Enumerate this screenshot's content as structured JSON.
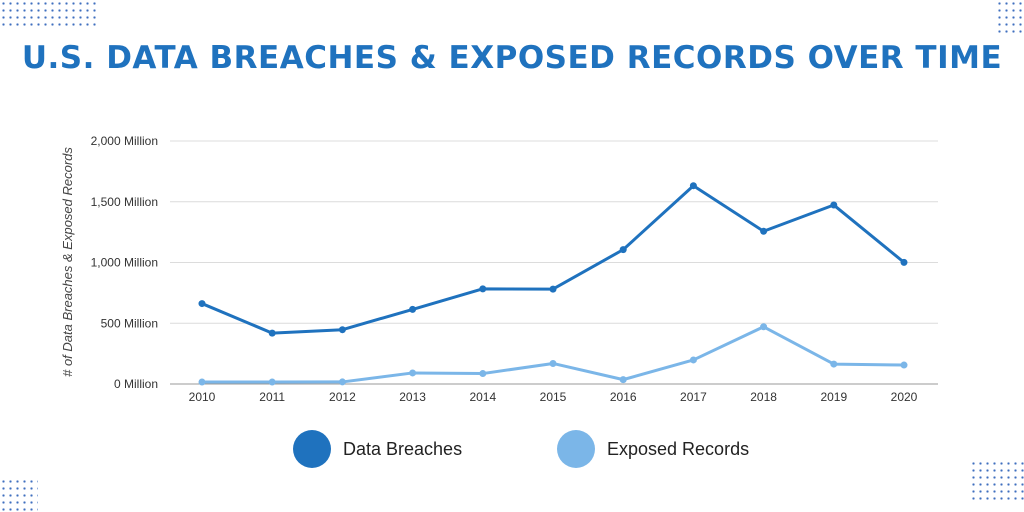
{
  "title": "U.S. DATA BREACHES & EXPOSED RECORDS OVER TIME",
  "colors": {
    "title": "#1f72be",
    "data_breaches": "#1f72be",
    "exposed_records": "#7bb6e8",
    "grid": "#dcdcdc",
    "axis": "#999999"
  },
  "legend": [
    {
      "label": "Data Breaches",
      "color": "#1f72be"
    },
    {
      "label": "Exposed Records",
      "color": "#7bb6e8"
    }
  ],
  "axis": {
    "ylabel": "# of Data Breaches & Exposed Records",
    "yticks": [
      "0 Million",
      "500 Million",
      "1,000 Million",
      "1,500 Million",
      "2,000 Million"
    ],
    "xticks": [
      "2010",
      "2011",
      "2012",
      "2013",
      "2014",
      "2015",
      "2016",
      "2017",
      "2018",
      "2019",
      "2020"
    ]
  },
  "chart_data": {
    "type": "line",
    "title": "U.S. DATA BREACHES & EXPOSED RECORDS OVER TIME",
    "xlabel": "",
    "ylabel": "# of Data Breaches & Exposed Records",
    "x": [
      2010,
      2011,
      2012,
      2013,
      2014,
      2015,
      2016,
      2017,
      2018,
      2019,
      2020
    ],
    "ylim": [
      0,
      2000
    ],
    "yunit": "Million",
    "grid": true,
    "legend_position": "bottom",
    "series": [
      {
        "name": "Data Breaches",
        "values": [
          662,
          419,
          447,
          614,
          783,
          781,
          1106,
          1632,
          1257,
          1473,
          1001
        ]
      },
      {
        "name": "Exposed Records",
        "values": [
          16,
          16,
          17,
          91,
          86,
          169,
          36,
          198,
          471,
          164,
          156
        ]
      }
    ]
  }
}
